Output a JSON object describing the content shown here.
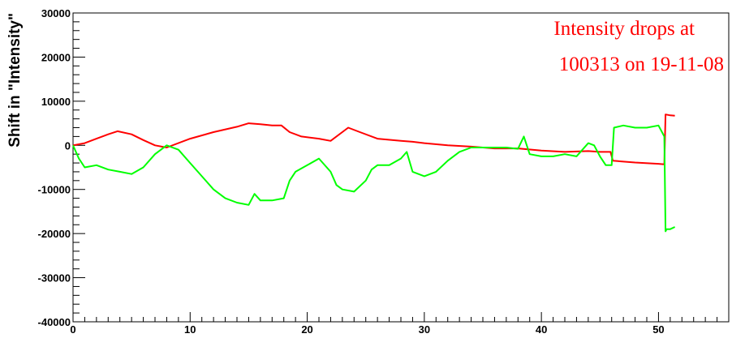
{
  "chart_data": {
    "type": "line",
    "title": "",
    "xlabel": "",
    "ylabel": "Shift in \"Intensity\"",
    "xlim": [
      0,
      56
    ],
    "ylim": [
      -40000,
      30000
    ],
    "x_ticks": [
      0,
      10,
      20,
      30,
      40,
      50
    ],
    "x_tick_labels": [
      "0",
      "10",
      "20",
      "30",
      "40",
      "50"
    ],
    "y_ticks": [
      -40000,
      -30000,
      -20000,
      -10000,
      0,
      10000,
      20000,
      30000
    ],
    "y_tick_labels": [
      "-40000",
      "-30000",
      "-20000",
      "-10000",
      "0",
      "10000",
      "20000",
      "30000"
    ],
    "grid": false,
    "annotation": [
      "Intensity drops at",
      "100313 on 19-11-08"
    ],
    "series": [
      {
        "color": "#ff0000",
        "x": [
          0,
          1,
          2,
          3,
          3.8,
          5,
          6,
          7,
          8,
          10,
          12,
          14,
          15,
          16,
          17,
          17.8,
          18.5,
          19.5,
          21,
          22,
          23.5,
          24.5,
          26,
          28,
          29,
          30,
          32,
          34,
          36,
          38,
          40,
          42,
          44,
          45,
          45.9,
          46.1,
          48,
          50,
          50.5,
          50.6,
          51,
          51.4
        ],
        "y": [
          0,
          500,
          1500,
          2500,
          3200,
          2500,
          1200,
          0,
          -500,
          1500,
          3000,
          4200,
          5000,
          4800,
          4500,
          4500,
          3000,
          2000,
          1500,
          1000,
          4000,
          3000,
          1500,
          1000,
          800,
          500,
          0,
          -300,
          -700,
          -700,
          -1200,
          -1500,
          -1300,
          -1500,
          -1500,
          -3500,
          -3900,
          -4200,
          -4300,
          7000,
          6800,
          6700
        ]
      },
      {
        "color": "#00ff00",
        "x": [
          0,
          0.5,
          1,
          2,
          3,
          4,
          5,
          6,
          7,
          8,
          9,
          10,
          11,
          12,
          13,
          14,
          15,
          15.5,
          16,
          17,
          18,
          18.5,
          19,
          20,
          21,
          22,
          22.5,
          23,
          24,
          25,
          25.5,
          26,
          27,
          28,
          28.5,
          29,
          30,
          31,
          32,
          33,
          34,
          35,
          36,
          37,
          38,
          38.5,
          39,
          40,
          41,
          42,
          43,
          44,
          44.5,
          45,
          45.5,
          46,
          46.2,
          47,
          48,
          49,
          50,
          50.5,
          50.6,
          50.7,
          51,
          51.4
        ],
        "y": [
          0,
          -3000,
          -5000,
          -4500,
          -5500,
          -6000,
          -6500,
          -5000,
          -2000,
          0,
          -1000,
          -4000,
          -7000,
          -10000,
          -12000,
          -13000,
          -13500,
          -11000,
          -12500,
          -12500,
          -12000,
          -8000,
          -6000,
          -4500,
          -3000,
          -6000,
          -9000,
          -10000,
          -10500,
          -8000,
          -5500,
          -4500,
          -4500,
          -3000,
          -1500,
          -6000,
          -7000,
          -6000,
          -3500,
          -1500,
          -500,
          -500,
          -500,
          -500,
          -800,
          2000,
          -2000,
          -2500,
          -2500,
          -2000,
          -2500,
          500,
          0,
          -2500,
          -4500,
          -4500,
          4000,
          4500,
          4000,
          4000,
          4500,
          2000,
          -19500,
          -19000,
          -19000,
          -18500
        ]
      }
    ]
  }
}
